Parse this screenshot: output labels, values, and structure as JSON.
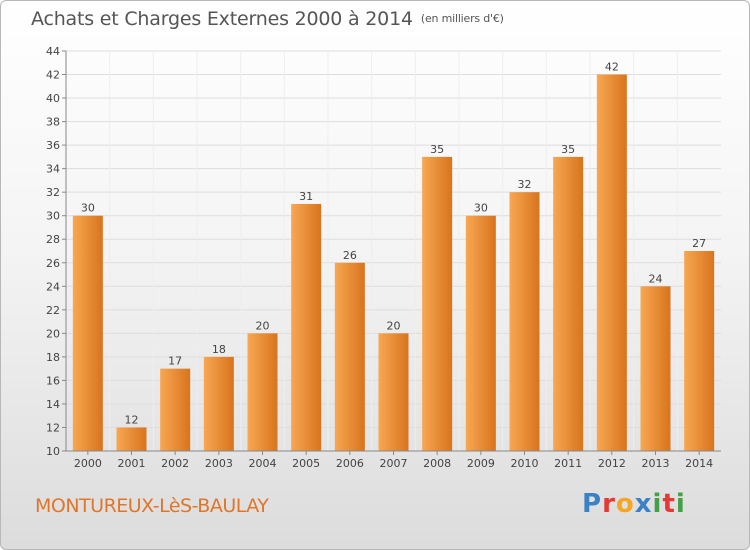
{
  "header": {
    "title": "Achats et Charges Externes 2000 à 2014",
    "subtitle": "(en milliers d'€)"
  },
  "footer": {
    "commune": "MONTUREUX-LèS-BAULAY",
    "logo": [
      "P",
      "r",
      "o",
      "x",
      "i",
      "t",
      "i"
    ]
  },
  "colors": {
    "bar_light": "#f8a752",
    "bar_dark": "#d8741d",
    "commune_text": "#e0762a",
    "logo_letters": [
      "#3b82c4",
      "#e53935",
      "#f5a623",
      "#3b82c4",
      "#43a047",
      "#e53935",
      "#43a047"
    ]
  },
  "chart_data": {
    "type": "bar",
    "categories": [
      "2000",
      "2001",
      "2002",
      "2003",
      "2004",
      "2005",
      "2006",
      "2007",
      "2008",
      "2009",
      "2010",
      "2011",
      "2012",
      "2013",
      "2014"
    ],
    "values": [
      30,
      12,
      17,
      18,
      20,
      31,
      26,
      20,
      35,
      30,
      32,
      35,
      42,
      24,
      27
    ],
    "data_labels": [
      "30",
      "12",
      "17",
      "18",
      "20",
      "31",
      "26",
      "20",
      "35",
      "30",
      "32",
      "35",
      "42",
      "24",
      "27"
    ],
    "title": "Achats et Charges Externes 2000 à 2014",
    "subtitle": "(en milliers d'€)",
    "ylim": [
      10,
      44
    ],
    "yticks": [
      10,
      12,
      14,
      16,
      18,
      20,
      22,
      24,
      26,
      28,
      30,
      32,
      34,
      36,
      38,
      40,
      42,
      44
    ],
    "grid": true,
    "legend": "none"
  }
}
